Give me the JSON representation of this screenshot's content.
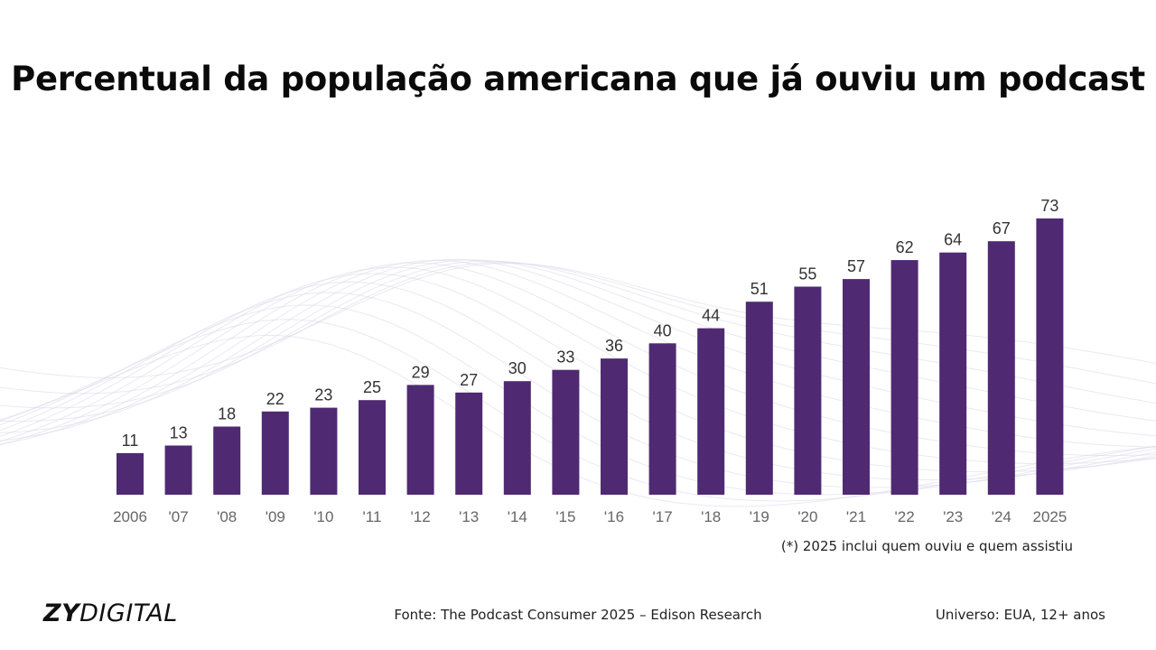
{
  "title": "Percentual da população americana que já ouviu um podcast",
  "note": "(*) 2025 inclui quem ouviu e quem assistiu",
  "footer": {
    "logo_bold": "ZY",
    "logo_light": "DIGITAL",
    "source": "Fonte: The Podcast Consumer 2025 – Edison Research",
    "universe": "Universo: EUA, 12+ anos"
  },
  "colors": {
    "bar": "#4f2a73",
    "label": "#333333",
    "tick": "#666666",
    "wave": "#d9d6e8"
  },
  "chart_data": {
    "type": "bar",
    "title": "Percentual da população americana que já ouviu um podcast",
    "categories": [
      "2006",
      "'07",
      "'08",
      "'09",
      "'10",
      "'11",
      "'12",
      "'13",
      "'14",
      "'15",
      "'16",
      "'17",
      "'18",
      "'19",
      "'20",
      "'21",
      "'22",
      "'23",
      "'24",
      "2025"
    ],
    "values": [
      11,
      13,
      18,
      22,
      23,
      25,
      29,
      27,
      30,
      33,
      36,
      40,
      44,
      51,
      55,
      57,
      62,
      64,
      67,
      73
    ],
    "xlabel": "",
    "ylabel": "",
    "ylim": [
      0,
      73
    ],
    "grid": false,
    "data_labels": true
  }
}
